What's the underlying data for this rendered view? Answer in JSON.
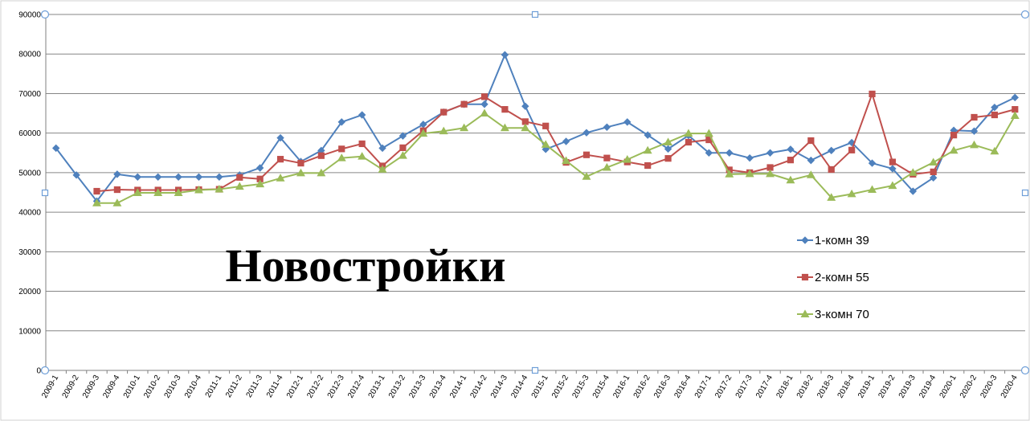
{
  "chart_data": {
    "type": "line",
    "title": "Новостройки",
    "xlabel": "",
    "ylabel": "",
    "ylim": [
      0,
      90000
    ],
    "yticks": [
      "0",
      "10000",
      "20000",
      "30000",
      "40000",
      "50000",
      "60000",
      "70000",
      "80000",
      "90000"
    ],
    "grid": true,
    "legend_position": "right",
    "categories": [
      "2009-1",
      "2009-2",
      "2009-3",
      "2009-4",
      "2010-1",
      "2010-2",
      "2010-3",
      "2010-4",
      "2011-1",
      "2011-2",
      "2011-3",
      "2011-4",
      "2012-1",
      "2012-2",
      "2012-3",
      "2012-4",
      "2013-1",
      "2013-2",
      "2013-3",
      "2013-4",
      "2014-1",
      "2014-2",
      "2014-3",
      "2014-4",
      "2015-1",
      "2015-2",
      "2015-3",
      "2015-4",
      "2016-1",
      "2016-2",
      "2016-3",
      "2016-4",
      "2017-1",
      "2017-2",
      "2017-3",
      "2017-4",
      "2018-1",
      "2018-2",
      "2018-3",
      "2018-4",
      "2019-1",
      "2019-2",
      "2019-3",
      "2019-4",
      "2020-1",
      "2020-2",
      "2020-3",
      "2020-4"
    ],
    "series": [
      {
        "name": "1-комн 39",
        "color": "#4f81bd",
        "marker": "diamond",
        "values": [
          56200,
          49400,
          42800,
          49600,
          48900,
          48900,
          48900,
          48900,
          48900,
          49400,
          51200,
          58800,
          52800,
          55600,
          62800,
          64600,
          56200,
          59300,
          62200,
          65300,
          67300,
          67300,
          79800,
          66800,
          55900,
          57900,
          60100,
          61500,
          62800,
          59500,
          56000,
          59400,
          55000,
          55000,
          53700,
          55000,
          55900,
          53100,
          55600,
          57600,
          52400,
          51000,
          45300,
          48700,
          60700,
          60500,
          66500,
          69000
        ]
      },
      {
        "name": "2-комн 55",
        "color": "#c0504d",
        "marker": "square",
        "values": [
          null,
          null,
          45300,
          45700,
          45600,
          45600,
          45600,
          45700,
          45800,
          48800,
          48400,
          53400,
          52400,
          54300,
          56000,
          57300,
          51700,
          56300,
          60600,
          65300,
          67300,
          69200,
          66000,
          62900,
          61800,
          52600,
          54500,
          53700,
          52700,
          51800,
          53600,
          57700,
          58300,
          50700,
          50000,
          51300,
          53200,
          58100,
          50800,
          55700,
          69900,
          52700,
          49600,
          50200,
          59500,
          64000,
          64600,
          66000
        ]
      },
      {
        "name": "3-комн 70",
        "color": "#9bbb59",
        "marker": "triangle",
        "values": [
          null,
          null,
          42300,
          42300,
          44900,
          44900,
          44900,
          45600,
          45800,
          46500,
          47100,
          48600,
          49900,
          49900,
          53700,
          54100,
          50800,
          54300,
          59900,
          60500,
          61300,
          65000,
          61300,
          61300,
          57100,
          53000,
          49000,
          51300,
          53300,
          55600,
          57700,
          59900,
          59900,
          49600,
          49700,
          49700,
          48100,
          49400,
          43700,
          44600,
          45700,
          46700,
          50000,
          52600,
          55600,
          57000,
          55400,
          64400
        ]
      }
    ]
  }
}
